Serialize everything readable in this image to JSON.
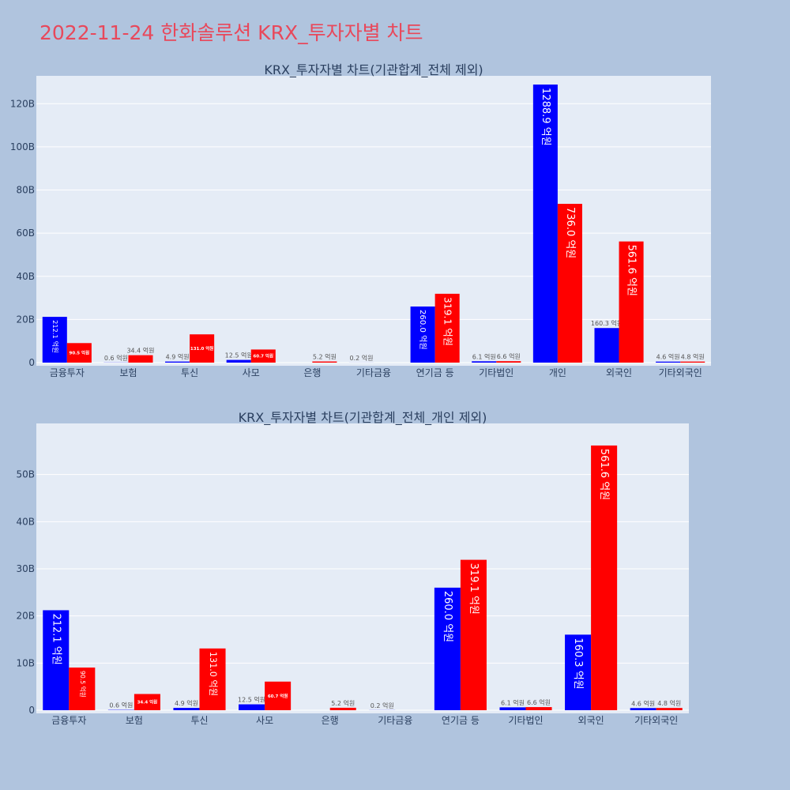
{
  "title": "2022-11-24 한화솔루션 KRX_투자자별 차트",
  "colors": {
    "buy": "#0000ff",
    "sell": "#ff0000",
    "plot_bg": "#e5ecf6",
    "page_bg": "#b0c4de",
    "title": "#e8485b"
  },
  "chart_data": [
    {
      "type": "bar",
      "title": "KRX_투자자별 차트(기관합계_전체 제외)",
      "categories": [
        "금융투자",
        "보험",
        "투신",
        "사모",
        "은행",
        "기타금융",
        "연기금 등",
        "기타법인",
        "개인",
        "외국인",
        "기타외국인"
      ],
      "series": [
        {
          "values": [
            21.21,
            0.06,
            0.49,
            1.25,
            0,
            0.02,
            26.0,
            0.61,
            128.89,
            16.03,
            0.46
          ],
          "labels": [
            "212.1 억원",
            "0.6 억원",
            "4.9 억원",
            "12.5 억원",
            "",
            "0.2 억원",
            "260.0 억원",
            "6.1 억원",
            "1288.9 억원",
            "160.3 억원",
            "4.6 억원"
          ]
        },
        {
          "values": [
            9.05,
            3.44,
            13.1,
            6.07,
            0.52,
            0,
            31.91,
            0.66,
            73.6,
            56.16,
            0.48
          ],
          "labels": [
            "90.5 억원",
            "34.4 억원",
            "131.0 억원",
            "60.7 억원",
            "5.2 억원",
            "",
            "319.1 억원",
            "6.6 억원",
            "736.0 억원",
            "561.6 억원",
            "4.8 억원"
          ]
        }
      ],
      "ylim": [
        0,
        130
      ],
      "yticks": [
        0,
        20,
        40,
        60,
        80,
        100,
        120
      ],
      "ytick_labels": [
        "0",
        "20B",
        "40B",
        "60B",
        "80B",
        "100B",
        "120B"
      ],
      "grid": true
    },
    {
      "type": "bar",
      "title": "KRX_투자자별 차트(기관합계_전체_개인 제외)",
      "categories": [
        "금융투자",
        "보험",
        "투신",
        "사모",
        "은행",
        "기타금융",
        "연기금 등",
        "기타법인",
        "외국인",
        "기타외국인"
      ],
      "series": [
        {
          "values": [
            21.21,
            0.06,
            0.49,
            1.25,
            0,
            0.02,
            26.0,
            0.61,
            16.03,
            0.46
          ],
          "labels": [
            "212.1 억원",
            "0.6 억원",
            "4.9 억원",
            "12.5 억원",
            "",
            "0.2 억원",
            "260.0 억원",
            "6.1 억원",
            "160.3 억원",
            "4.6 억원"
          ]
        },
        {
          "values": [
            9.05,
            3.44,
            13.1,
            6.07,
            0.52,
            0,
            31.91,
            0.66,
            56.16,
            0.48
          ],
          "labels": [
            "90.5 억원",
            "34.4 억원",
            "131.0 억원",
            "60.7 억원",
            "5.2 억원",
            "",
            "319.1 억원",
            "6.6 억원",
            "561.6 억원",
            "4.8 억원"
          ]
        }
      ],
      "ylim": [
        0,
        59.5
      ],
      "yticks": [
        0,
        10,
        20,
        30,
        40,
        50
      ],
      "ytick_labels": [
        "0",
        "10B",
        "20B",
        "30B",
        "40B",
        "50B"
      ],
      "grid": true
    }
  ]
}
